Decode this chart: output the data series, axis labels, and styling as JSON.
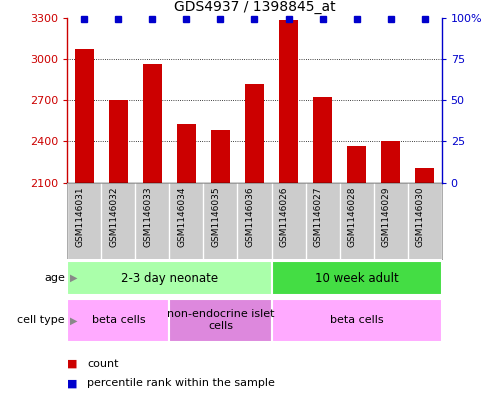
{
  "title": "GDS4937 / 1398845_at",
  "samples": [
    "GSM1146031",
    "GSM1146032",
    "GSM1146033",
    "GSM1146034",
    "GSM1146035",
    "GSM1146036",
    "GSM1146026",
    "GSM1146027",
    "GSM1146028",
    "GSM1146029",
    "GSM1146030"
  ],
  "counts": [
    3075,
    2700,
    2960,
    2530,
    2480,
    2820,
    3285,
    2720,
    2370,
    2400,
    2210
  ],
  "percentile_ranks": [
    99,
    99,
    99,
    99,
    99,
    99,
    99,
    99,
    99,
    99,
    99
  ],
  "ylim_left": [
    2100,
    3300
  ],
  "ylim_right": [
    0,
    100
  ],
  "yticks_left": [
    2100,
    2400,
    2700,
    3000,
    3300
  ],
  "yticks_right": [
    0,
    25,
    50,
    75,
    100
  ],
  "bar_color": "#cc0000",
  "square_color": "#0000cc",
  "age_groups": [
    {
      "label": "2-3 day neonate",
      "start": 0,
      "end": 6,
      "color": "#aaffaa"
    },
    {
      "label": "10 week adult",
      "start": 6,
      "end": 11,
      "color": "#44dd44"
    }
  ],
  "cell_type_groups": [
    {
      "label": "beta cells",
      "start": 0,
      "end": 3,
      "color": "#ffaaff"
    },
    {
      "label": "non-endocrine islet\ncells",
      "start": 3,
      "end": 6,
      "color": "#dd88dd"
    },
    {
      "label": "beta cells",
      "start": 6,
      "end": 11,
      "color": "#ffaaff"
    }
  ],
  "legend_items": [
    {
      "color": "#cc0000",
      "label": "count"
    },
    {
      "color": "#0000cc",
      "label": "percentile rank within the sample"
    }
  ],
  "sample_bg": "#cccccc",
  "background_color": "#ffffff"
}
